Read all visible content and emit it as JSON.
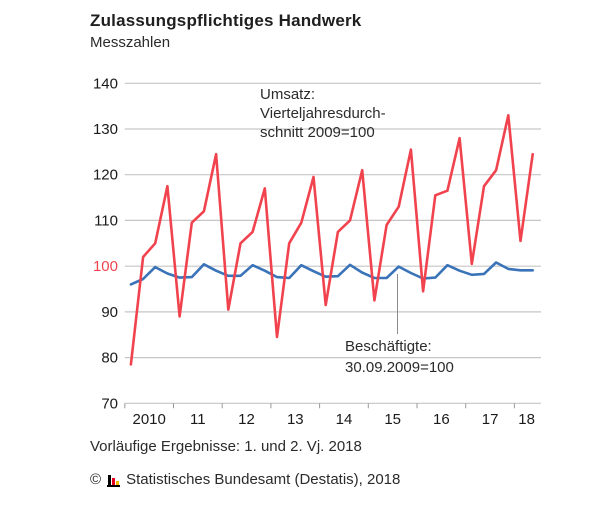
{
  "header": {
    "title": "Zulassungspflichtiges Handwerk",
    "subtitle": "Messzahlen"
  },
  "chart_data": {
    "type": "line",
    "x_unit": "quarter",
    "x_range": "2010 Q1 – 2018 Q2",
    "x_tick_labels": [
      "2010",
      "11",
      "12",
      "13",
      "14",
      "15",
      "16",
      "17",
      "18"
    ],
    "y_ticks": [
      70,
      80,
      90,
      100,
      110,
      120,
      130,
      140
    ],
    "ylim": [
      70,
      140
    ],
    "highlight_y_tick": 100,
    "grid": true,
    "legend_position": "annotations-inline",
    "series": [
      {
        "name": "Umsatz",
        "color": "#f1434e",
        "values": [
          78.5,
          102,
          105,
          117.5,
          89,
          109.5,
          112,
          124.5,
          90.5,
          105,
          107.5,
          117,
          84.5,
          105,
          109.5,
          119.5,
          91.5,
          107.5,
          110,
          121,
          92.5,
          109,
          113,
          125.5,
          94.5,
          115.5,
          116.5,
          128,
          100.5,
          117.5,
          121,
          133,
          105.5,
          124.5
        ]
      },
      {
        "name": "Beschäftigte",
        "color": "#3a73b8",
        "values": [
          96,
          97.2,
          99.8,
          98.4,
          97.5,
          97.6,
          100.4,
          99,
          97.9,
          97.9,
          100.2,
          99,
          97.6,
          97.4,
          100.2,
          98.9,
          97.7,
          97.8,
          100.3,
          98.6,
          97.4,
          97.4,
          99.9,
          98.5,
          97.3,
          97.5,
          100.2,
          99,
          98.1,
          98.3,
          100.8,
          99.4,
          99.1,
          99.1
        ]
      }
    ],
    "annotations": [
      {
        "id": "umsatz",
        "lines": [
          "Umsatz:",
          "Vierteljahresdurch-",
          "schnitt 2009=100"
        ]
      },
      {
        "id": "beschaeftigte",
        "lines": [
          "Beschäftigte:",
          "30.09.2009=100"
        ]
      }
    ]
  },
  "footer": {
    "note": "Vorläufige Ergebnisse: 1. und 2. Vj. 2018",
    "copyright_symbol": "©",
    "copyright_text": "Statistisches Bundesamt (Destatis), 2018",
    "logo_icon": "destatis-bar-chart-logo"
  },
  "colors": {
    "umsatz_red": "#f1434e",
    "beschaeftigte_blue": "#3a73b8",
    "grid": "#c6c6c6",
    "axis_tick": "#9a9a9a",
    "text": "#1a1a1a",
    "connector": "#8c8c8c",
    "logo_black": "#000000",
    "logo_red": "#e2001a",
    "logo_gold": "#f0bc00"
  }
}
